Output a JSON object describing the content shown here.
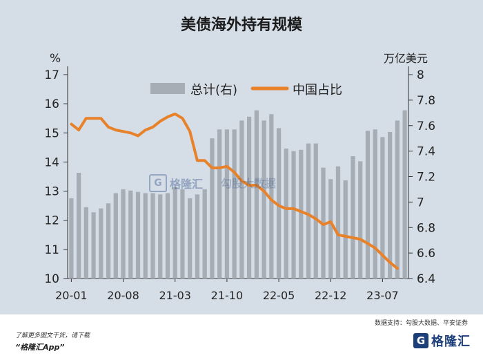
{
  "chart_data": {
    "type": "bar+line",
    "title": "美债海外持有规模",
    "left_axis_label": "%",
    "right_axis_label": "万亿美元",
    "left_ylim": [
      10,
      17
    ],
    "left_ticks": [
      "10",
      "11",
      "12",
      "13",
      "14",
      "15",
      "16",
      "17"
    ],
    "right_ylim": [
      6.4,
      8.0
    ],
    "right_ticks": [
      "6.4",
      "6.6",
      "6.8",
      "7",
      "7.2",
      "7.4",
      "7.6",
      "7.8",
      "8"
    ],
    "x_tick_labels": [
      "20-01",
      "20-08",
      "21-03",
      "21-10",
      "22-05",
      "22-12",
      "23-07"
    ],
    "x_tick_indices": [
      0,
      7,
      14,
      21,
      28,
      35,
      42
    ],
    "legend": {
      "bar_label": "总计(右)",
      "line_label": "中国占比",
      "placement": "top"
    },
    "colors": {
      "bar": "#a7adb4",
      "line": "#e8822a",
      "background": "#d5dde6"
    },
    "series": [
      {
        "name": "总计(右)",
        "axis": "right",
        "kind": "bar",
        "values": [
          7.03,
          7.23,
          6.96,
          6.92,
          6.95,
          6.99,
          7.07,
          7.1,
          7.09,
          7.08,
          7.07,
          7.07,
          7.06,
          7.07,
          7.12,
          7.1,
          7.03,
          7.06,
          7.1,
          7.5,
          7.57,
          7.57,
          7.57,
          7.64,
          7.67,
          7.72,
          7.64,
          7.69,
          7.58,
          7.42,
          7.4,
          7.41,
          7.46,
          7.46,
          7.27,
          7.18,
          7.28,
          7.17,
          7.36,
          7.32,
          7.56,
          7.57,
          7.51,
          7.55,
          7.64,
          7.72
        ]
      },
      {
        "name": "中国占比",
        "axis": "left",
        "kind": "line",
        "values": [
          15.3,
          15.1,
          15.5,
          15.5,
          15.5,
          15.2,
          15.1,
          15.05,
          15.0,
          14.9,
          15.1,
          15.2,
          15.4,
          15.55,
          15.65,
          15.5,
          15.05,
          14.05,
          14.05,
          13.8,
          13.8,
          13.85,
          13.65,
          13.35,
          13.2,
          13.2,
          13.0,
          12.7,
          12.5,
          12.4,
          12.4,
          12.3,
          12.2,
          12.05,
          11.85,
          11.95,
          11.5,
          11.45,
          11.4,
          11.35,
          11.2,
          11.05,
          10.8,
          10.55,
          10.35
        ]
      }
    ]
  },
  "watermark": {
    "logo_glyph": "G",
    "brand": "格隆汇",
    "partner": "勾股大数据",
    "partner_url": "www.gogudata.com"
  },
  "footer": {
    "source": "数据支持：勾股大数据、平安证券",
    "promo_line1": "了解更多图文干货，请下载",
    "promo_line2": "“格隆汇App”",
    "logo_glyph": "G",
    "logo_text": "格隆汇"
  }
}
